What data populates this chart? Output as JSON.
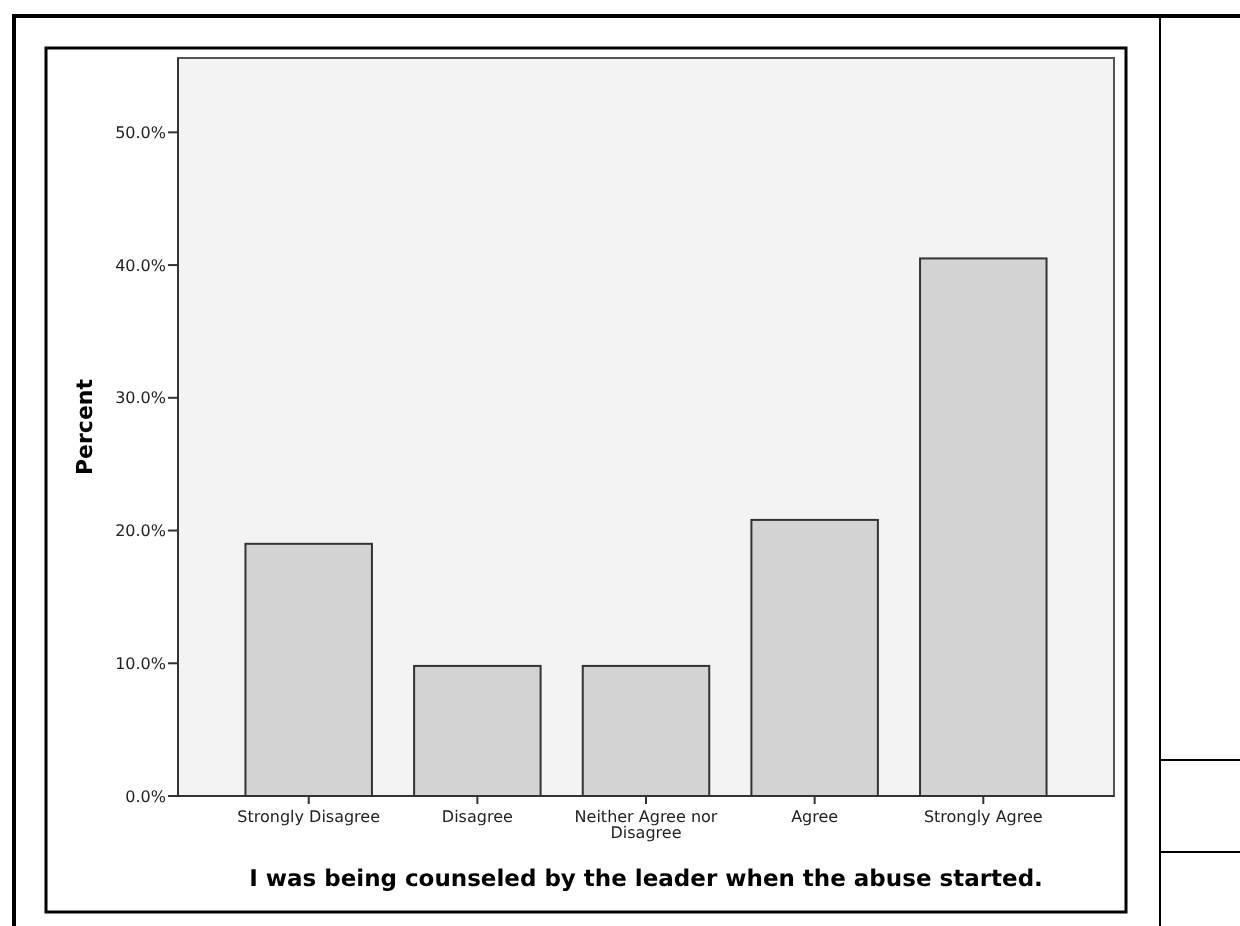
{
  "chart_data": {
    "type": "bar",
    "xlabel": "I was being counseled by the leader when the abuse started.",
    "ylabel": "Percent",
    "categories": [
      "Strongly Disagree",
      "Disagree",
      "Neither Agree nor Disagree",
      "Agree",
      "Strongly Agree"
    ],
    "series": [
      {
        "color": "#d3d3d3",
        "values": [
          19.0,
          9.8,
          9.8,
          20.8,
          40.5
        ]
      }
    ],
    "ylim": [
      0,
      55.6
    ],
    "yticks": [
      {
        "value": 0,
        "label": "0.0%"
      },
      {
        "value": 10,
        "label": "10.0%"
      },
      {
        "value": 20,
        "label": "20.0%"
      },
      {
        "value": 30,
        "label": "30.0%"
      },
      {
        "value": 40,
        "label": "40.0%"
      },
      {
        "value": 50,
        "label": "50.0%"
      }
    ],
    "grid": false
  }
}
